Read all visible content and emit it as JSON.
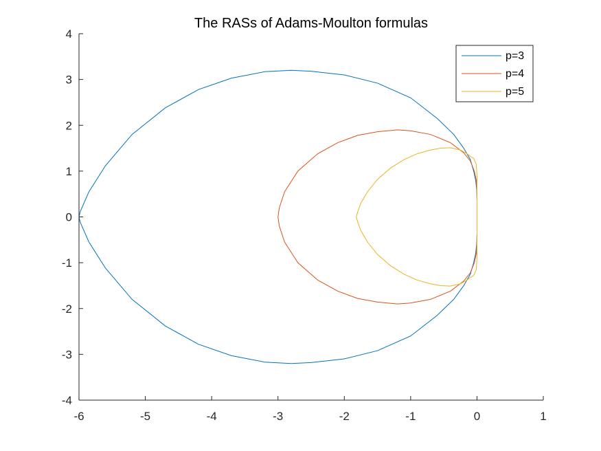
{
  "chart_data": {
    "type": "line",
    "title": "The RASs of Adams-Moulton formulas",
    "xlabel": "",
    "ylabel": "",
    "xlim": [
      -6,
      1
    ],
    "ylim": [
      -4,
      4
    ],
    "x_ticks": [
      "-6",
      "-5",
      "-4",
      "-3",
      "-2",
      "-1",
      "0",
      "1"
    ],
    "y_ticks": [
      "4",
      "3",
      "2",
      "1",
      "0",
      "-1",
      "-2",
      "-3",
      "-4"
    ],
    "grid": false,
    "legend_position": "top-right",
    "series": [
      {
        "name": "p=3",
        "color": "#0072BD",
        "points": [
          [
            0,
            0.38
          ],
          [
            -0.005,
            0.6
          ],
          [
            -0.02,
            0.8
          ],
          [
            -0.05,
            1.0
          ],
          [
            -0.1,
            1.25
          ],
          [
            -0.2,
            1.5
          ],
          [
            -0.35,
            1.8
          ],
          [
            -0.6,
            2.15
          ],
          [
            -1.0,
            2.6
          ],
          [
            -1.5,
            2.92
          ],
          [
            -2.0,
            3.1
          ],
          [
            -2.5,
            3.18
          ],
          [
            -2.8,
            3.2
          ],
          [
            -3.2,
            3.17
          ],
          [
            -3.7,
            3.03
          ],
          [
            -4.2,
            2.78
          ],
          [
            -4.7,
            2.38
          ],
          [
            -5.2,
            1.8
          ],
          [
            -5.6,
            1.12
          ],
          [
            -5.85,
            0.55
          ],
          [
            -5.98,
            0.12
          ],
          [
            -6.0,
            0
          ],
          [
            -5.98,
            -0.12
          ],
          [
            -5.85,
            -0.55
          ],
          [
            -5.6,
            -1.12
          ],
          [
            -5.2,
            -1.8
          ],
          [
            -4.7,
            -2.38
          ],
          [
            -4.2,
            -2.78
          ],
          [
            -3.7,
            -3.03
          ],
          [
            -3.2,
            -3.17
          ],
          [
            -2.8,
            -3.2
          ],
          [
            -2.5,
            -3.18
          ],
          [
            -2.0,
            -3.1
          ],
          [
            -1.5,
            -2.92
          ],
          [
            -1.0,
            -2.6
          ],
          [
            -0.6,
            -2.15
          ],
          [
            -0.35,
            -1.8
          ],
          [
            -0.2,
            -1.5
          ],
          [
            -0.1,
            -1.25
          ],
          [
            -0.05,
            -1.0
          ],
          [
            -0.02,
            -0.8
          ],
          [
            -0.005,
            -0.6
          ],
          [
            0,
            -0.38
          ]
        ]
      },
      {
        "name": "p=4",
        "color": "#D95319",
        "points": [
          [
            0,
            0.55
          ],
          [
            -0.01,
            0.8
          ],
          [
            -0.04,
            1.0
          ],
          [
            -0.1,
            1.22
          ],
          [
            -0.2,
            1.4
          ],
          [
            -0.4,
            1.62
          ],
          [
            -0.7,
            1.8
          ],
          [
            -1.0,
            1.88
          ],
          [
            -1.2,
            1.9
          ],
          [
            -1.5,
            1.86
          ],
          [
            -1.8,
            1.78
          ],
          [
            -2.1,
            1.62
          ],
          [
            -2.4,
            1.38
          ],
          [
            -2.7,
            1.0
          ],
          [
            -2.9,
            0.55
          ],
          [
            -2.98,
            0.2
          ],
          [
            -3.0,
            0
          ],
          [
            -2.98,
            -0.2
          ],
          [
            -2.9,
            -0.55
          ],
          [
            -2.7,
            -1.0
          ],
          [
            -2.4,
            -1.38
          ],
          [
            -2.1,
            -1.62
          ],
          [
            -1.8,
            -1.78
          ],
          [
            -1.5,
            -1.86
          ],
          [
            -1.2,
            -1.9
          ],
          [
            -1.0,
            -1.88
          ],
          [
            -0.7,
            -1.8
          ],
          [
            -0.4,
            -1.62
          ],
          [
            -0.2,
            -1.4
          ],
          [
            -0.1,
            -1.22
          ],
          [
            -0.04,
            -1.0
          ],
          [
            -0.01,
            -0.8
          ],
          [
            0,
            -0.55
          ]
        ]
      },
      {
        "name": "p=5",
        "color": "#EDB120",
        "points": [
          [
            0,
            0.0
          ],
          [
            0.0,
            0.5
          ],
          [
            0.0,
            0.9
          ],
          [
            -0.01,
            1.15
          ],
          [
            -0.05,
            1.28
          ],
          [
            -0.1,
            1.32
          ],
          [
            -0.15,
            1.38
          ],
          [
            -0.25,
            1.46
          ],
          [
            -0.4,
            1.51
          ],
          [
            -0.55,
            1.5
          ],
          [
            -0.7,
            1.46
          ],
          [
            -0.9,
            1.38
          ],
          [
            -1.1,
            1.25
          ],
          [
            -1.3,
            1.07
          ],
          [
            -1.5,
            0.82
          ],
          [
            -1.65,
            0.55
          ],
          [
            -1.75,
            0.3
          ],
          [
            -1.8,
            0.1
          ],
          [
            -1.82,
            0
          ],
          [
            -1.8,
            -0.1
          ],
          [
            -1.75,
            -0.3
          ],
          [
            -1.65,
            -0.55
          ],
          [
            -1.5,
            -0.82
          ],
          [
            -1.3,
            -1.07
          ],
          [
            -1.1,
            -1.25
          ],
          [
            -0.9,
            -1.38
          ],
          [
            -0.7,
            -1.46
          ],
          [
            -0.55,
            -1.5
          ],
          [
            -0.4,
            -1.51
          ],
          [
            -0.25,
            -1.46
          ],
          [
            -0.15,
            -1.38
          ],
          [
            -0.1,
            -1.32
          ],
          [
            -0.05,
            -1.28
          ],
          [
            -0.01,
            -1.15
          ],
          [
            0.0,
            -0.9
          ],
          [
            0.0,
            -0.5
          ],
          [
            0,
            0.0
          ]
        ]
      }
    ]
  }
}
